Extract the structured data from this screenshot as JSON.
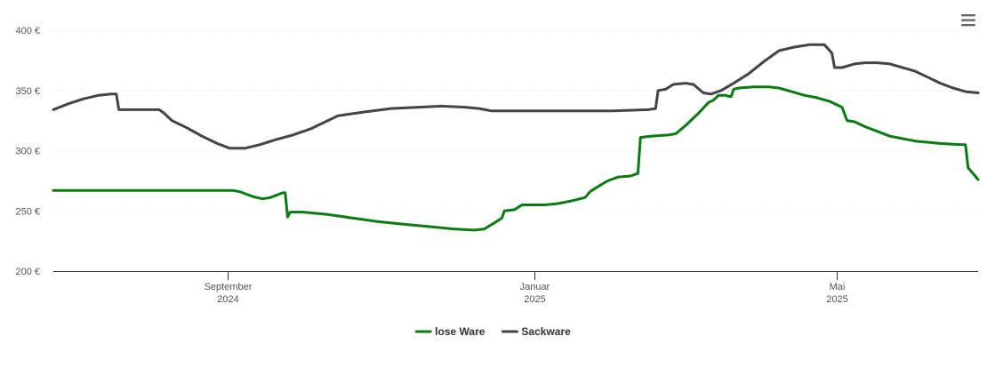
{
  "chart_data": {
    "type": "line",
    "y_ticks": [
      {
        "value": 200,
        "label": "200 €"
      },
      {
        "value": 250,
        "label": "250 €"
      },
      {
        "value": 300,
        "label": "300 €"
      },
      {
        "value": 350,
        "label": "350 €"
      },
      {
        "value": 400,
        "label": "400 €"
      }
    ],
    "ylim": [
      200,
      400
    ],
    "xlim": [
      "2024-06-24",
      "2025-06-26"
    ],
    "x_ticks": [
      {
        "date": "2024-09-01",
        "label": [
          "September",
          "2024"
        ]
      },
      {
        "date": "2025-01-01",
        "label": [
          "Januar",
          "2025"
        ]
      },
      {
        "date": "2025-05-01",
        "label": [
          "Mai",
          "2025"
        ]
      }
    ],
    "grid": "horizontal",
    "legend_position": "bottom-center",
    "series": [
      {
        "name": "lose Ware",
        "color": "#0a7a12",
        "points": [
          [
            "2024-06-24",
            267
          ],
          [
            "2024-09-03",
            267
          ],
          [
            "2024-09-06",
            266
          ],
          [
            "2024-09-11",
            262
          ],
          [
            "2024-09-15",
            260
          ],
          [
            "2024-09-18",
            261
          ],
          [
            "2024-09-23",
            265
          ],
          [
            "2024-09-24",
            265
          ],
          [
            "2024-09-25",
            245
          ],
          [
            "2024-09-26",
            249
          ],
          [
            "2024-10-01",
            249
          ],
          [
            "2024-10-11",
            247
          ],
          [
            "2024-10-21",
            244
          ],
          [
            "2024-10-31",
            241
          ],
          [
            "2024-11-10",
            239
          ],
          [
            "2024-11-20",
            237
          ],
          [
            "2024-11-30",
            235
          ],
          [
            "2024-12-08",
            234
          ],
          [
            "2024-12-12",
            235
          ],
          [
            "2024-12-16",
            240
          ],
          [
            "2024-12-19",
            244
          ],
          [
            "2024-12-20",
            250
          ],
          [
            "2024-12-24",
            251
          ],
          [
            "2024-12-27",
            255
          ],
          [
            "2024-12-31",
            255
          ],
          [
            "2025-01-05",
            255
          ],
          [
            "2025-01-10",
            256
          ],
          [
            "2025-01-15",
            258
          ],
          [
            "2025-01-19",
            260
          ],
          [
            "2025-01-21",
            261
          ],
          [
            "2025-01-23",
            266
          ],
          [
            "2025-01-26",
            270
          ],
          [
            "2025-01-30",
            275
          ],
          [
            "2025-02-03",
            278
          ],
          [
            "2025-02-08",
            279
          ],
          [
            "2025-02-11",
            281
          ],
          [
            "2025-02-12",
            311
          ],
          [
            "2025-02-16",
            312
          ],
          [
            "2025-02-23",
            313
          ],
          [
            "2025-02-26",
            314
          ],
          [
            "2025-03-02",
            321
          ],
          [
            "2025-03-07",
            331
          ],
          [
            "2025-03-11",
            340
          ],
          [
            "2025-03-13",
            342
          ],
          [
            "2025-03-15",
            346
          ],
          [
            "2025-03-18",
            346
          ],
          [
            "2025-03-19",
            345
          ],
          [
            "2025-03-20",
            345
          ],
          [
            "2025-03-21",
            351
          ],
          [
            "2025-03-23",
            352
          ],
          [
            "2025-03-29",
            353
          ],
          [
            "2025-04-04",
            353
          ],
          [
            "2025-04-08",
            352
          ],
          [
            "2025-04-13",
            349
          ],
          [
            "2025-04-18",
            346
          ],
          [
            "2025-04-23",
            344
          ],
          [
            "2025-04-28",
            341
          ],
          [
            "2025-05-01",
            338
          ],
          [
            "2025-05-03",
            336
          ],
          [
            "2025-05-05",
            325
          ],
          [
            "2025-05-08",
            324
          ],
          [
            "2025-05-12",
            320
          ],
          [
            "2025-05-22",
            312
          ],
          [
            "2025-06-01",
            308
          ],
          [
            "2025-06-11",
            306
          ],
          [
            "2025-06-19",
            305
          ],
          [
            "2025-06-21",
            305
          ],
          [
            "2025-06-22",
            286
          ],
          [
            "2025-06-26",
            276
          ]
        ]
      },
      {
        "name": "Sackware",
        "color": "#434348",
        "points": [
          [
            "2024-06-24",
            334
          ],
          [
            "2024-06-30",
            339
          ],
          [
            "2024-07-06",
            343
          ],
          [
            "2024-07-12",
            346
          ],
          [
            "2024-07-17",
            347
          ],
          [
            "2024-07-19",
            347
          ],
          [
            "2024-07-20",
            334
          ],
          [
            "2024-08-05",
            334
          ],
          [
            "2024-08-07",
            331
          ],
          [
            "2024-08-10",
            325
          ],
          [
            "2024-08-16",
            319
          ],
          [
            "2024-08-22",
            312
          ],
          [
            "2024-08-28",
            306
          ],
          [
            "2024-09-02",
            302
          ],
          [
            "2024-09-08",
            302
          ],
          [
            "2024-09-14",
            305
          ],
          [
            "2024-09-20",
            309
          ],
          [
            "2024-09-27",
            313
          ],
          [
            "2024-10-04",
            318
          ],
          [
            "2024-10-10",
            324
          ],
          [
            "2024-10-15",
            329
          ],
          [
            "2024-10-25",
            332
          ],
          [
            "2024-11-05",
            335
          ],
          [
            "2024-11-15",
            336
          ],
          [
            "2024-11-25",
            337
          ],
          [
            "2024-12-05",
            336
          ],
          [
            "2024-12-10",
            335
          ],
          [
            "2024-12-15",
            333
          ],
          [
            "2025-01-01",
            333
          ],
          [
            "2025-02-01",
            333
          ],
          [
            "2025-02-15",
            334
          ],
          [
            "2025-02-18",
            335
          ],
          [
            "2025-02-19",
            350
          ],
          [
            "2025-02-22",
            351
          ],
          [
            "2025-02-25",
            355
          ],
          [
            "2025-03-02",
            356
          ],
          [
            "2025-03-05",
            355
          ],
          [
            "2025-03-09",
            348
          ],
          [
            "2025-03-12",
            347
          ],
          [
            "2025-03-16",
            350
          ],
          [
            "2025-03-21",
            356
          ],
          [
            "2025-03-27",
            364
          ],
          [
            "2025-04-02",
            374
          ],
          [
            "2025-04-08",
            383
          ],
          [
            "2025-04-14",
            386
          ],
          [
            "2025-04-20",
            388
          ],
          [
            "2025-04-26",
            388
          ],
          [
            "2025-04-29",
            381
          ],
          [
            "2025-04-30",
            369
          ],
          [
            "2025-05-03",
            369
          ],
          [
            "2025-05-08",
            372
          ],
          [
            "2025-05-12",
            373
          ],
          [
            "2025-05-17",
            373
          ],
          [
            "2025-05-22",
            372
          ],
          [
            "2025-05-27",
            369
          ],
          [
            "2025-06-01",
            366
          ],
          [
            "2025-06-06",
            361
          ],
          [
            "2025-06-11",
            356
          ],
          [
            "2025-06-16",
            352
          ],
          [
            "2025-06-21",
            349
          ],
          [
            "2025-06-26",
            348
          ]
        ]
      }
    ]
  },
  "menu": {
    "icon": "hamburger-menu-icon"
  }
}
